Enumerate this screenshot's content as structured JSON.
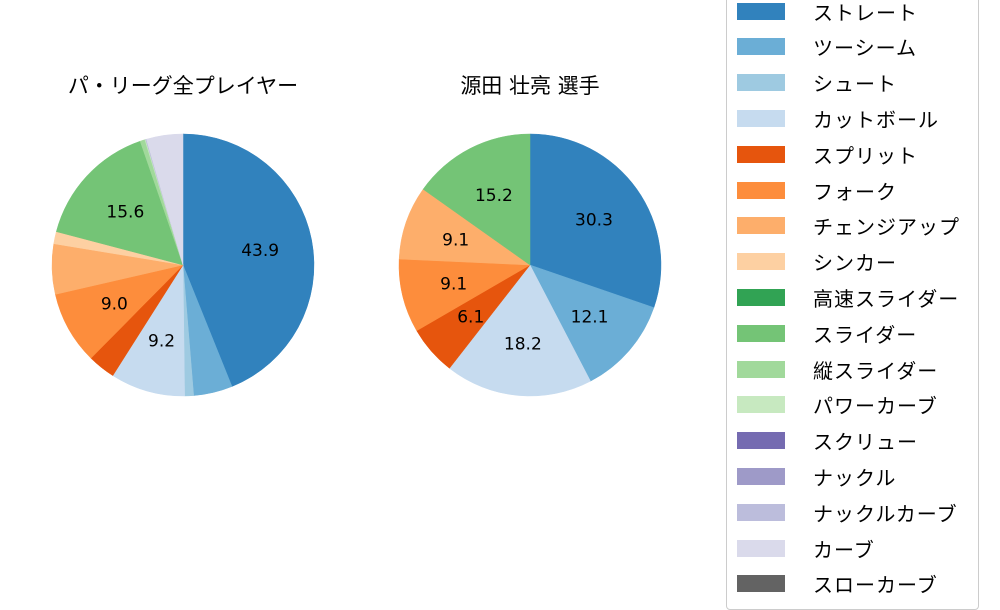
{
  "chart_data": [
    {
      "type": "pie",
      "title": "パ・リーグ全プレイヤー",
      "start_angle_deg": 90,
      "direction": "clockwise",
      "center": [
        183,
        265
      ],
      "radius": 131,
      "slices": [
        {
          "label": "ストレート",
          "value": 43.9,
          "color": "#3182bd",
          "show_label": true
        },
        {
          "label": "ツーシーム",
          "value": 4.8,
          "color": "#6baed6",
          "show_label": false
        },
        {
          "label": "シュート",
          "value": 1.1,
          "color": "#9ecae1",
          "show_label": false
        },
        {
          "label": "カットボール",
          "value": 9.2,
          "color": "#c6dbef",
          "show_label": true
        },
        {
          "label": "スプリット",
          "value": 3.4,
          "color": "#e6550d",
          "show_label": false
        },
        {
          "label": "フォーク",
          "value": 9.0,
          "color": "#fd8d3c",
          "show_label": true
        },
        {
          "label": "チェンジアップ",
          "value": 6.2,
          "color": "#fdae6b",
          "show_label": false
        },
        {
          "label": "シンカー",
          "value": 1.5,
          "color": "#fdd0a2",
          "show_label": false
        },
        {
          "label": "スライダー",
          "value": 15.6,
          "color": "#74c476",
          "show_label": true
        },
        {
          "label": "縦スライダー",
          "value": 0.6,
          "color": "#a1d99b",
          "show_label": false
        },
        {
          "label": "パワーカーブ",
          "value": 0.1,
          "color": "#c7e9c0",
          "show_label": false
        },
        {
          "label": "ナックルカーブ",
          "value": 0.1,
          "color": "#bcbddc",
          "show_label": false
        },
        {
          "label": "カーブ",
          "value": 4.5,
          "color": "#dadaeb",
          "show_label": false
        }
      ]
    },
    {
      "type": "pie",
      "title": "源田 壮亮  選手",
      "start_angle_deg": 90,
      "direction": "clockwise",
      "center": [
        530,
        265
      ],
      "radius": 131,
      "slices": [
        {
          "label": "ストレート",
          "value": 30.3,
          "color": "#3182bd",
          "show_label": true
        },
        {
          "label": "ツーシーム",
          "value": 12.1,
          "color": "#6baed6",
          "show_label": true
        },
        {
          "label": "カットボール",
          "value": 18.2,
          "color": "#c6dbef",
          "show_label": true
        },
        {
          "label": "スプリット",
          "value": 6.1,
          "color": "#e6550d",
          "show_label": true
        },
        {
          "label": "フォーク",
          "value": 9.1,
          "color": "#fd8d3c",
          "show_label": true
        },
        {
          "label": "チェンジアップ",
          "value": 9.1,
          "color": "#fdae6b",
          "show_label": true
        },
        {
          "label": "スライダー",
          "value": 15.2,
          "color": "#74c476",
          "show_label": true
        }
      ]
    }
  ],
  "titles": {
    "left": "パ・リーグ全プレイヤー",
    "right": "源田 壮亮  選手"
  },
  "legend": {
    "position": "right",
    "items": [
      {
        "label": "ストレート",
        "color": "#3182bd"
      },
      {
        "label": "ツーシーム",
        "color": "#6baed6"
      },
      {
        "label": "シュート",
        "color": "#9ecae1"
      },
      {
        "label": "カットボール",
        "color": "#c6dbef"
      },
      {
        "label": "スプリット",
        "color": "#e6550d"
      },
      {
        "label": "フォーク",
        "color": "#fd8d3c"
      },
      {
        "label": "チェンジアップ",
        "color": "#fdae6b"
      },
      {
        "label": "シンカー",
        "color": "#fdd0a2"
      },
      {
        "label": "高速スライダー",
        "color": "#31a354"
      },
      {
        "label": "スライダー",
        "color": "#74c476"
      },
      {
        "label": "縦スライダー",
        "color": "#a1d99b"
      },
      {
        "label": "パワーカーブ",
        "color": "#c7e9c0"
      },
      {
        "label": "スクリュー",
        "color": "#756bb1"
      },
      {
        "label": "ナックル",
        "color": "#9e9ac8"
      },
      {
        "label": "ナックルカーブ",
        "color": "#bcbddc"
      },
      {
        "label": "カーブ",
        "color": "#dadaeb"
      },
      {
        "label": "スローカーブ",
        "color": "#636363"
      }
    ]
  }
}
